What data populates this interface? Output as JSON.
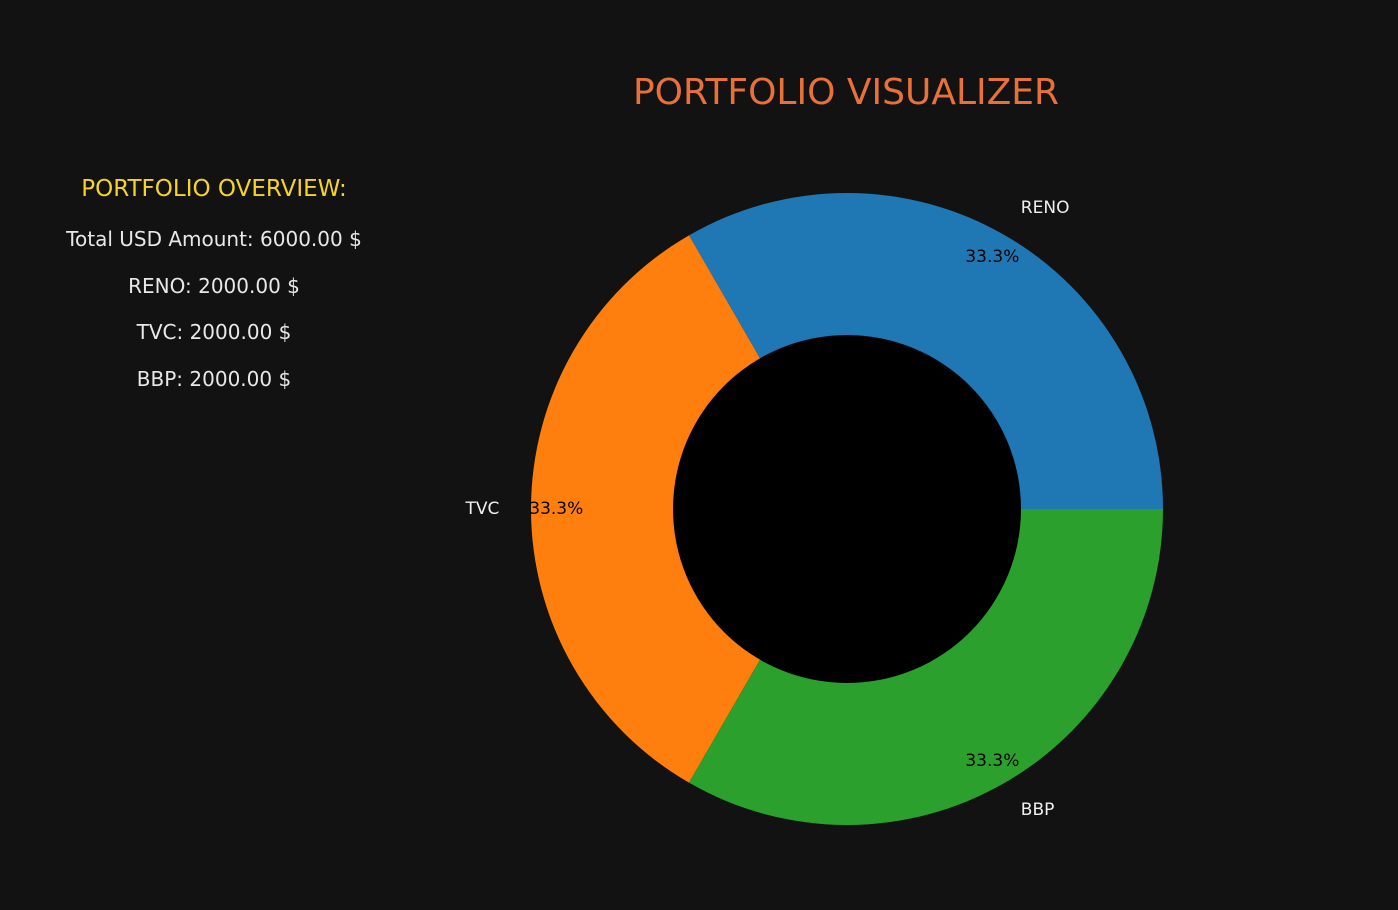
{
  "overview": {
    "title": "PORTFOLIO OVERVIEW:",
    "total_line": "Total USD Amount: 6000.00 $",
    "holdings": [
      {
        "line": "RENO: 2000.00 $"
      },
      {
        "line": "TVC: 2000.00 $"
      },
      {
        "line": "BBP: 2000.00 $"
      }
    ]
  },
  "colors": {
    "background": "#121212",
    "title": "#e8713a",
    "overview_title": "#f5d327",
    "text": "#e8e8e8",
    "donut_hole": "#000000"
  },
  "chart_data": {
    "type": "pie",
    "variant": "donut",
    "title": "PORTFOLIO VISUALIZER",
    "start_angle_deg": 0,
    "direction": "counterclockwise",
    "slices": [
      {
        "label": "RENO",
        "value": 2000.0,
        "percent_label": "33.3%",
        "color": "#1f77b4"
      },
      {
        "label": "TVC",
        "value": 2000.0,
        "percent_label": "33.3%",
        "color": "#ff7f0e"
      },
      {
        "label": "BBP",
        "value": 2000.0,
        "percent_label": "33.3%",
        "color": "#2ca02c"
      }
    ]
  }
}
